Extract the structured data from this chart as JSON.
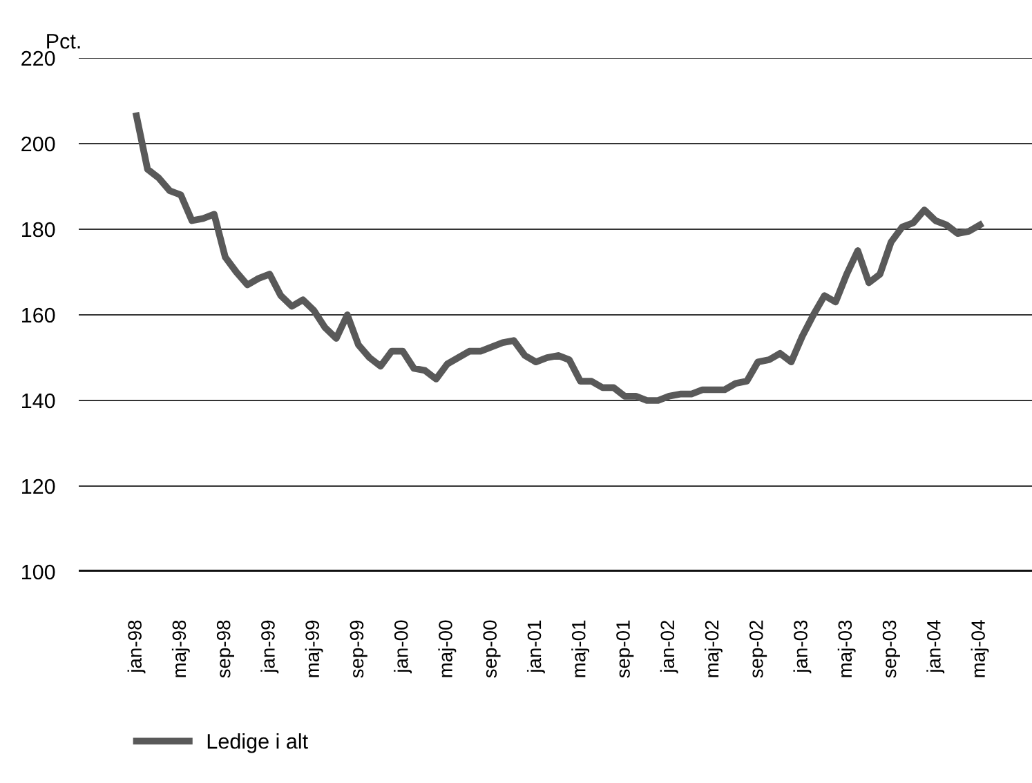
{
  "chart_data": {
    "type": "line",
    "ylabel": "Pct.",
    "categories": [
      "jan-98",
      null,
      null,
      null,
      "maj-98",
      null,
      null,
      null,
      "sep-98",
      null,
      null,
      null,
      "jan-99",
      null,
      null,
      null,
      "maj-99",
      null,
      null,
      null,
      "sep-99",
      null,
      null,
      null,
      "jan-00",
      null,
      null,
      null,
      "maj-00",
      null,
      null,
      null,
      "sep-00",
      null,
      null,
      null,
      "jan-01",
      null,
      null,
      null,
      "maj-01",
      null,
      null,
      null,
      "sep-01",
      null,
      null,
      null,
      "jan-02",
      null,
      null,
      null,
      "maj-02",
      null,
      null,
      null,
      "sep-02",
      null,
      null,
      null,
      "jan-03",
      null,
      null,
      null,
      "maj-03",
      null,
      null,
      null,
      "sep-03",
      null,
      null,
      null,
      "jan-04",
      null,
      null,
      null,
      "maj-04"
    ],
    "series": [
      {
        "name": "Ledige i alt",
        "color": "#595959",
        "values": [
          206.5,
          194,
          192,
          189,
          188,
          182,
          182.5,
          183.5,
          173.5,
          170,
          167,
          168.5,
          169.5,
          164.5,
          162,
          163.5,
          161,
          157,
          154.5,
          160,
          153,
          150,
          148,
          151.5,
          151.5,
          147.5,
          147,
          145,
          148.5,
          150,
          151.5,
          151.5,
          152.5,
          153.5,
          154,
          150.5,
          149,
          150,
          150.5,
          149.5,
          144.5,
          144.5,
          143,
          143,
          141,
          141,
          140,
          140,
          141,
          141.5,
          141.5,
          142.5,
          142.5,
          142.5,
          144,
          144.5,
          149,
          149.5,
          151,
          149,
          155,
          160,
          164.5,
          163,
          169.5,
          175,
          167.5,
          169.5,
          177,
          180.5,
          181.5,
          184.5,
          182,
          181,
          179,
          179.5,
          181
        ]
      }
    ],
    "ylim": [
      100,
      220
    ],
    "yticks": [
      100,
      120,
      140,
      160,
      180,
      200,
      220
    ],
    "grid": "y",
    "legend": "bottom left",
    "marker": "none",
    "line_style": "solid"
  }
}
